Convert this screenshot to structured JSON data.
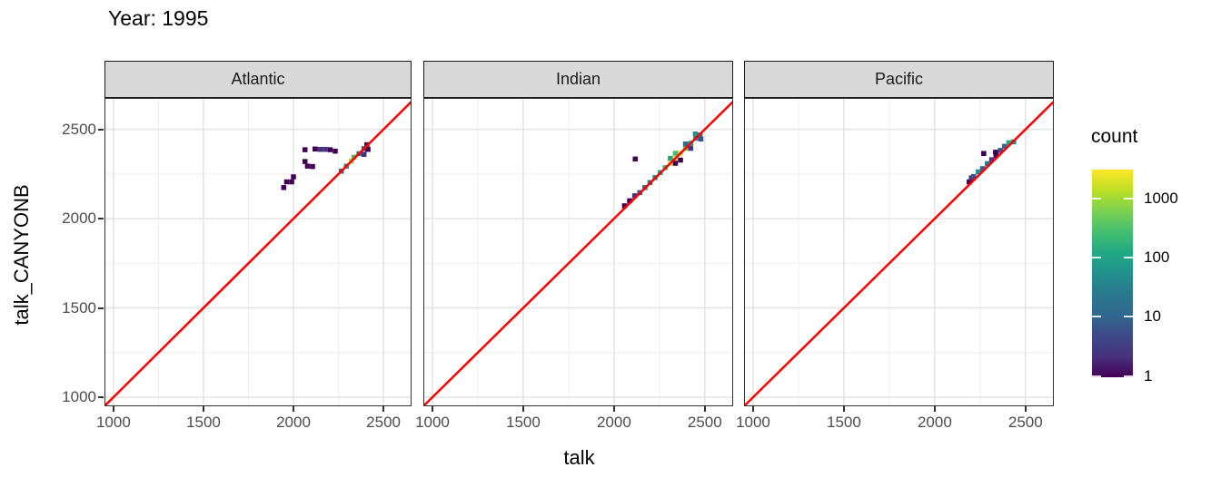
{
  "chart_data": {
    "type": "heatmap",
    "title": "Year: 1995",
    "xlabel": "talk",
    "ylabel": "talk_CANYONB",
    "x_domain": [
      950,
      2656
    ],
    "y_domain": [
      949,
      2676
    ],
    "x_ticks": [
      1000,
      1500,
      2000,
      2500
    ],
    "y_ticks": [
      2500,
      2000,
      1500,
      1000
    ],
    "minor_ticks": [
      1250,
      1750,
      2250
    ],
    "grid": "on",
    "binwidth": 28,
    "ref_line": {
      "type": "y=x",
      "color": "#FF0000",
      "width": 2.5
    },
    "facets": [
      {
        "label": "Atlantic",
        "bins": [
          [
            2064,
            2386,
            "#440154"
          ],
          [
            2120,
            2390,
            "#440154"
          ],
          [
            2148,
            2388,
            "#46327E"
          ],
          [
            2176,
            2388,
            "#46327E"
          ],
          [
            2204,
            2386,
            "#440154"
          ],
          [
            2232,
            2378,
            "#440154"
          ],
          [
            2064,
            2320,
            "#440154"
          ],
          [
            2078,
            2294,
            "#440154"
          ],
          [
            2106,
            2292,
            "#440154"
          ],
          [
            2000,
            2234,
            "#440154"
          ],
          [
            1990,
            2206,
            "#440154"
          ],
          [
            1962,
            2206,
            "#440154"
          ],
          [
            1946,
            2174,
            "#440154"
          ],
          [
            2266,
            2266,
            "#31688E"
          ],
          [
            2294,
            2294,
            "#21918C"
          ],
          [
            2322,
            2322,
            "#9FDA3A"
          ],
          [
            2336,
            2344,
            "#4AC16D"
          ],
          [
            2364,
            2364,
            "#2A788E"
          ],
          [
            2392,
            2392,
            "#3B528B"
          ],
          [
            2408,
            2414,
            "#440154"
          ],
          [
            2392,
            2360,
            "#46327E"
          ],
          [
            2414,
            2388,
            "#440154"
          ]
        ]
      },
      {
        "label": "Indian",
        "bins": [
          [
            2058,
            2072,
            "#440154"
          ],
          [
            2086,
            2100,
            "#440154"
          ],
          [
            2114,
            2128,
            "#46327E"
          ],
          [
            2142,
            2146,
            "#365C8D"
          ],
          [
            2170,
            2174,
            "#31688E"
          ],
          [
            2198,
            2202,
            "#2A788E"
          ],
          [
            2226,
            2230,
            "#21918C"
          ],
          [
            2254,
            2258,
            "#22A884"
          ],
          [
            2282,
            2286,
            "#44BF70"
          ],
          [
            2310,
            2310,
            "#FDE725"
          ],
          [
            2338,
            2338,
            "#FDE725"
          ],
          [
            2366,
            2366,
            "#DCE319"
          ],
          [
            2394,
            2394,
            "#7AD151"
          ],
          [
            2422,
            2422,
            "#22A884"
          ],
          [
            2450,
            2450,
            "#21918C"
          ],
          [
            2474,
            2468,
            "#2A788E"
          ],
          [
            2310,
            2338,
            "#22A884"
          ],
          [
            2338,
            2366,
            "#44BF70"
          ],
          [
            2394,
            2418,
            "#31688E"
          ],
          [
            2338,
            2310,
            "#440154"
          ],
          [
            2366,
            2328,
            "#440154"
          ],
          [
            2422,
            2394,
            "#46327E"
          ],
          [
            2448,
            2474,
            "#21918C"
          ],
          [
            2478,
            2446,
            "#3B528B"
          ],
          [
            2117,
            2334,
            "#440154"
          ]
        ]
      },
      {
        "label": "Pacific",
        "bins": [
          [
            2190,
            2206,
            "#440154"
          ],
          [
            2202,
            2228,
            "#46327E"
          ],
          [
            2214,
            2236,
            "#3B528B"
          ],
          [
            2240,
            2262,
            "#21918C"
          ],
          [
            2264,
            2280,
            "#365C8D"
          ],
          [
            2290,
            2308,
            "#2A788E"
          ],
          [
            2314,
            2330,
            "#46327E"
          ],
          [
            2338,
            2355,
            "#440154"
          ],
          [
            2362,
            2382,
            "#3B528B"
          ],
          [
            2385,
            2405,
            "#31688E"
          ],
          [
            2408,
            2425,
            "#22A884"
          ],
          [
            2435,
            2430,
            "#21918C"
          ],
          [
            2270,
            2365,
            "#440154"
          ],
          [
            2335,
            2372,
            "#440154"
          ]
        ]
      }
    ],
    "legend": {
      "title": "count",
      "scale": "log10",
      "ticks": [
        1000,
        100,
        10,
        1
      ],
      "range": [
        0.95,
        3100
      ],
      "gradient": [
        "#FDE725",
        "#BDDF26",
        "#7AD151",
        "#44BF70",
        "#22A884",
        "#21918C",
        "#2A788E",
        "#31688E",
        "#3E4989",
        "#46327E",
        "#440154"
      ]
    },
    "colors": {
      "strip_bg": "#D9D9D9",
      "panel_border": "#333333",
      "grid_major": "#E3E3E3",
      "grid_minor": "#F1F1F1",
      "tick_label": "#4D4D4D",
      "ref_line": "#FF0000"
    }
  }
}
